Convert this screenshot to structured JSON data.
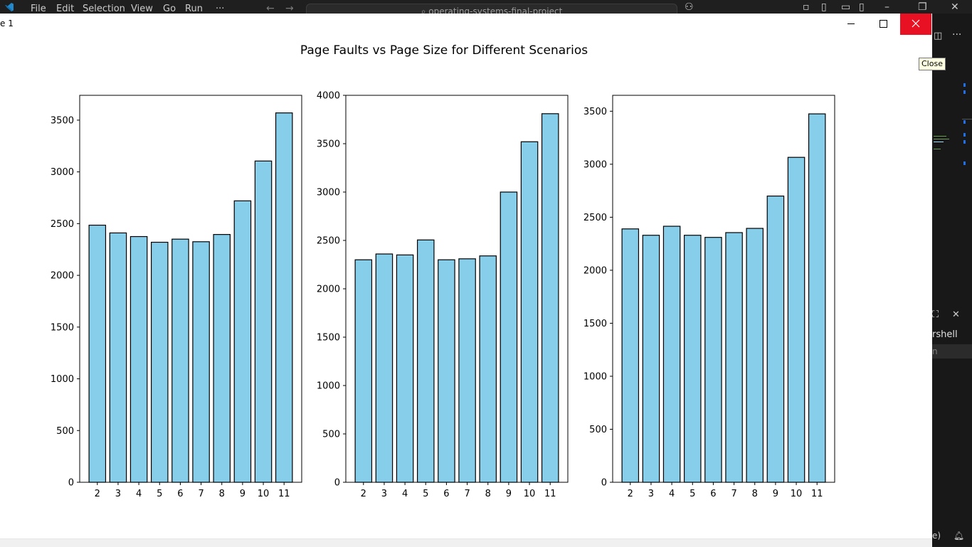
{
  "vscode": {
    "menu": [
      "File",
      "Edit",
      "Selection",
      "View",
      "Go",
      "Run",
      "···"
    ],
    "search_text": "operating-systems-final-project",
    "panel_label": "rshell",
    "panel_selected": "n",
    "status_text": "e)"
  },
  "window": {
    "title": "e 1",
    "close_tooltip": "Close",
    "colors": {
      "close_bg": "#e81123",
      "bar_fill": "#87ceeb",
      "bar_edge": "#000000"
    }
  },
  "chart_data": {
    "suptitle": "Page Faults vs Page Size for Different Scenarios",
    "type": "bar",
    "subplots": [
      {
        "type": "bar",
        "categories": [
          "2",
          "3",
          "4",
          "5",
          "6",
          "7",
          "8",
          "9",
          "10",
          "11"
        ],
        "values": [
          2485,
          2410,
          2375,
          2320,
          2350,
          2325,
          2395,
          2720,
          3105,
          3570
        ],
        "ylim": [
          0,
          3740
        ],
        "yticks": [
          0,
          500,
          1000,
          1500,
          2000,
          2500,
          3000,
          3500
        ]
      },
      {
        "type": "bar",
        "categories": [
          "2",
          "3",
          "4",
          "5",
          "6",
          "7",
          "8",
          "9",
          "10",
          "11"
        ],
        "values": [
          2300,
          2360,
          2350,
          2505,
          2300,
          2310,
          2340,
          3000,
          3520,
          3810
        ],
        "ylim": [
          0,
          4000
        ],
        "yticks": [
          0,
          500,
          1000,
          1500,
          2000,
          2500,
          3000,
          3500,
          4000
        ]
      },
      {
        "type": "bar",
        "categories": [
          "2",
          "3",
          "4",
          "5",
          "6",
          "7",
          "8",
          "9",
          "10",
          "11"
        ],
        "values": [
          2390,
          2330,
          2415,
          2330,
          2310,
          2355,
          2395,
          2700,
          3065,
          3475
        ],
        "ylim": [
          0,
          3650
        ],
        "yticks": [
          0,
          500,
          1000,
          1500,
          2000,
          2500,
          3000,
          3500
        ]
      }
    ]
  }
}
